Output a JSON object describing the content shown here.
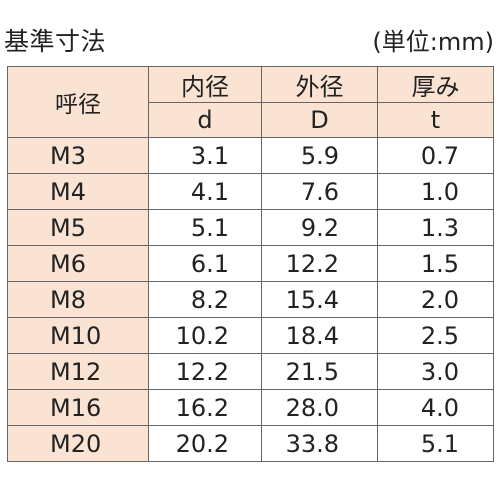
{
  "title": "基準寸法",
  "unit": "(単位:mm)",
  "table": {
    "nominal_header": "呼径",
    "columns": [
      {
        "label": "内径",
        "symbol": "d"
      },
      {
        "label": "外径",
        "symbol": "D"
      },
      {
        "label": "厚み",
        "symbol": "t"
      }
    ],
    "rows": [
      {
        "name": "M3",
        "d": "3.1",
        "D": "5.9",
        "t": "0.7"
      },
      {
        "name": "M4",
        "d": "4.1",
        "D": "7.6",
        "t": "1.0"
      },
      {
        "name": "M5",
        "d": "5.1",
        "D": "9.2",
        "t": "1.3"
      },
      {
        "name": "M6",
        "d": "6.1",
        "D": "12.2",
        "t": "1.5"
      },
      {
        "name": "M8",
        "d": "8.2",
        "D": "15.4",
        "t": "2.0"
      },
      {
        "name": "M10",
        "d": "10.2",
        "D": "18.4",
        "t": "2.5"
      },
      {
        "name": "M12",
        "d": "12.2",
        "D": "21.5",
        "t": "3.0"
      },
      {
        "name": "M16",
        "d": "16.2",
        "D": "28.0",
        "t": "4.0"
      },
      {
        "name": "M20",
        "d": "20.2",
        "D": "33.8",
        "t": "5.1"
      }
    ],
    "header_bg": "#fbe3d3",
    "border_color": "#666666"
  }
}
